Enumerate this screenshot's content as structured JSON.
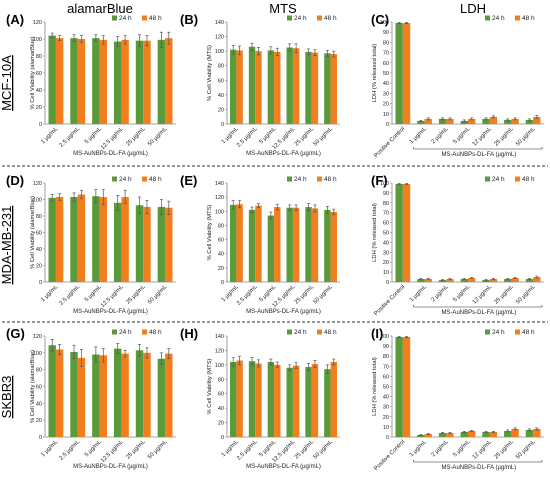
{
  "colors": {
    "h24": "#5b9a3a",
    "h48": "#f27f1f",
    "error": "#555555",
    "divider": "#777777"
  },
  "columns": [
    "alamarBlue",
    "MTS",
    "LDH"
  ],
  "rows": [
    "MCF-10A",
    "MDA-MB-231",
    "SKBR3"
  ],
  "legend": [
    "24 h",
    "48 h"
  ],
  "chart_data": [
    {
      "panel": "(A)",
      "type": "bar",
      "ylabel": "% Cell Viability (alamarBlue)",
      "xlabel": "MS-AuNBPs-DL-FA (µg/mL)",
      "ylim": [
        0,
        120
      ],
      "yticks": [
        0,
        20,
        40,
        60,
        80,
        100,
        120
      ],
      "categories": [
        "1 µg/mL",
        "2.5 µg/mL",
        "5 µg/mL",
        "12.5 µg/mL",
        "25 µg/mL",
        "50 µg/mL"
      ],
      "series": [
        {
          "name": "24 h",
          "values": [
            104,
            101,
            101,
            97,
            98,
            99
          ],
          "errors": [
            3,
            4,
            4,
            6,
            7,
            9
          ]
        },
        {
          "name": "48 h",
          "values": [
            101,
            100,
            99,
            99,
            98,
            101
          ],
          "errors": [
            3,
            4,
            5,
            5,
            6,
            7
          ]
        }
      ]
    },
    {
      "panel": "(B)",
      "type": "bar",
      "ylabel": "% Cell Viability (MTS)",
      "xlabel": "MS-AuNBPs-DL-FA (µg/mL)",
      "ylim": [
        0,
        140
      ],
      "yticks": [
        0,
        20,
        40,
        60,
        80,
        100,
        120,
        140
      ],
      "categories": [
        "1 µg/mL",
        "2.5 µg/mL",
        "5 µg/mL",
        "12.5 µg/mL",
        "25 µg/mL",
        "50 µg/mL"
      ],
      "series": [
        {
          "name": "24 h",
          "values": [
            102,
            106,
            101,
            105,
            99,
            97
          ],
          "errors": [
            6,
            5,
            5,
            5,
            4,
            4
          ]
        },
        {
          "name": "48 h",
          "values": [
            101,
            100,
            99,
            104,
            98,
            96
          ],
          "errors": [
            6,
            5,
            5,
            6,
            4,
            4
          ]
        }
      ]
    },
    {
      "panel": "(C)",
      "type": "bar",
      "ylabel": "LDH (% released total)",
      "xlabel": "MS-AuNBPs-DL-FA (µg/mL)",
      "ylim": [
        0,
        100
      ],
      "yticks": [
        0,
        10,
        20,
        30,
        40,
        50,
        60,
        70,
        80,
        90,
        100
      ],
      "categories": [
        "Positive Control",
        "1 µg/mL",
        "2 µg/mL",
        "5 µg/mL",
        "12 µg/mL",
        "25 µg/mL",
        "50 µg/mL"
      ],
      "series": [
        {
          "name": "24 h",
          "values": [
            99,
            3,
            5,
            3,
            5,
            4,
            4
          ],
          "errors": [
            0.5,
            0.5,
            1,
            1,
            1,
            1,
            1
          ]
        },
        {
          "name": "48 h",
          "values": [
            99,
            5,
            5,
            5,
            7,
            5,
            7
          ],
          "errors": [
            0.5,
            1,
            1,
            1,
            1,
            1,
            1.5
          ]
        }
      ]
    },
    {
      "panel": "(D)",
      "type": "bar",
      "ylabel": "% Cell Viability (alamarBlue)",
      "xlabel": "MS-AuNBPs-DL-FA (µg/mL)",
      "ylim": [
        0,
        120
      ],
      "yticks": [
        0,
        20,
        40,
        60,
        80,
        100,
        120
      ],
      "categories": [
        "1 µg/mL",
        "2.5 µg/mL",
        "5 µg/mL",
        "12.5 µg/mL",
        "25 µg/mL",
        "50 µg/mL"
      ],
      "series": [
        {
          "name": "24 h",
          "values": [
            102,
            103,
            104,
            96,
            93,
            91
          ],
          "errors": [
            4,
            5,
            8,
            9,
            10,
            9
          ]
        },
        {
          "name": "48 h",
          "values": [
            103,
            106,
            103,
            103,
            91,
            90
          ],
          "errors": [
            4,
            5,
            9,
            8,
            8,
            8
          ]
        }
      ]
    },
    {
      "panel": "(E)",
      "type": "bar",
      "ylabel": "% Cell Viability (MTS)",
      "xlabel": "MS-AuNBPs-DL-FA (µg/mL)",
      "ylim": [
        0,
        140
      ],
      "yticks": [
        0,
        20,
        40,
        60,
        80,
        100,
        120,
        140
      ],
      "categories": [
        "1 µg/mL",
        "2.5 µg/mL",
        "5 µg/mL",
        "12.5 µg/mL",
        "25 µg/mL",
        "50 µg/mL"
      ],
      "series": [
        {
          "name": "24 h",
          "values": [
            109,
            102,
            94,
            105,
            106,
            102
          ],
          "errors": [
            6,
            4,
            5,
            4,
            5,
            5
          ]
        },
        {
          "name": "48 h",
          "values": [
            110,
            108,
            106,
            105,
            104,
            99
          ],
          "errors": [
            5,
            3,
            4,
            4,
            5,
            4
          ]
        }
      ]
    },
    {
      "panel": "(F)",
      "type": "bar",
      "ylabel": "LDH (% released total)",
      "xlabel": "MS-AuNBPs-DL-FA (µg/mL)",
      "ylim": [
        0,
        100
      ],
      "yticks": [
        0,
        10,
        20,
        30,
        40,
        50,
        60,
        70,
        80,
        90,
        100
      ],
      "categories": [
        "Positive Control",
        "1 µg/mL",
        "2 µg/mL",
        "5 µg/mL",
        "12 µg/mL",
        "25 µg/mL",
        "50 µg/mL"
      ],
      "series": [
        {
          "name": "24 h",
          "values": [
            99,
            3,
            2,
            3,
            2,
            3,
            3
          ],
          "errors": [
            0.5,
            0.5,
            0.5,
            0.5,
            0.5,
            0.5,
            0.5
          ]
        },
        {
          "name": "48 h",
          "values": [
            99,
            3,
            3,
            4,
            3,
            4,
            5
          ],
          "errors": [
            0.5,
            0.5,
            0.5,
            0.5,
            0.5,
            0.5,
            1
          ]
        }
      ]
    },
    {
      "panel": "(G)",
      "type": "bar",
      "ylabel": "% Cell Viability (alamarBlue)",
      "xlabel": "MS-AuNBPs-DL-FA (µg/mL)",
      "ylim": [
        0,
        120
      ],
      "yticks": [
        0,
        20,
        40,
        60,
        80,
        100,
        120
      ],
      "categories": [
        "1 µg/mL",
        "2.5 µg/mL",
        "5 µg/mL",
        "12.5 µg/mL",
        "25 µg/mL",
        "50 µg/mL"
      ],
      "series": [
        {
          "name": "24 h",
          "values": [
            109,
            101,
            98,
            105,
            103,
            93
          ],
          "errors": [
            7,
            8,
            9,
            6,
            7,
            7
          ]
        },
        {
          "name": "48 h",
          "values": [
            104,
            94,
            97,
            99,
            100,
            99
          ],
          "errors": [
            6,
            10,
            8,
            4,
            6,
            6
          ]
        }
      ]
    },
    {
      "panel": "(H)",
      "type": "bar",
      "ylabel": "% Cell Viability (MTS)",
      "xlabel": "MS-AuNBPs-DL-FA (µg/mL)",
      "ylim": [
        0,
        140
      ],
      "yticks": [
        0,
        20,
        40,
        60,
        80,
        100,
        120,
        140
      ],
      "categories": [
        "1 µg/mL",
        "2.5 µg/mL",
        "5 µg/mL",
        "12.5 µg/mL",
        "25 µg/mL",
        "50 µg/mL"
      ],
      "series": [
        {
          "name": "24 h",
          "values": [
            104,
            105,
            104,
            96,
            97,
            94
          ],
          "errors": [
            6,
            5,
            4,
            4,
            5,
            6
          ]
        },
        {
          "name": "48 h",
          "values": [
            106,
            102,
            100,
            99,
            101,
            104
          ],
          "errors": [
            6,
            5,
            4,
            4,
            5,
            4
          ]
        }
      ]
    },
    {
      "panel": "(I)",
      "type": "bar",
      "ylabel": "LDH (% released total)",
      "xlabel": "MS-AuNBPs-DL-FA (µg/mL)",
      "ylim": [
        0,
        100
      ],
      "yticks": [
        0,
        10,
        20,
        30,
        40,
        50,
        60,
        70,
        80,
        90,
        100
      ],
      "categories": [
        "Positive Control",
        "1 µg/mL",
        "2 µg/mL",
        "5 µg/mL",
        "12 µg/mL",
        "25 µg/mL",
        "50 µg/mL"
      ],
      "series": [
        {
          "name": "24 h",
          "values": [
            99,
            2,
            4,
            5,
            5,
            6,
            7
          ],
          "errors": [
            0.5,
            0.5,
            0.5,
            0.5,
            0.5,
            1,
            1
          ]
        },
        {
          "name": "48 h",
          "values": [
            99,
            3,
            4,
            6,
            5,
            8,
            8
          ],
          "errors": [
            0.5,
            0.5,
            0.5,
            0.5,
            0.5,
            1,
            1
          ]
        }
      ]
    }
  ]
}
